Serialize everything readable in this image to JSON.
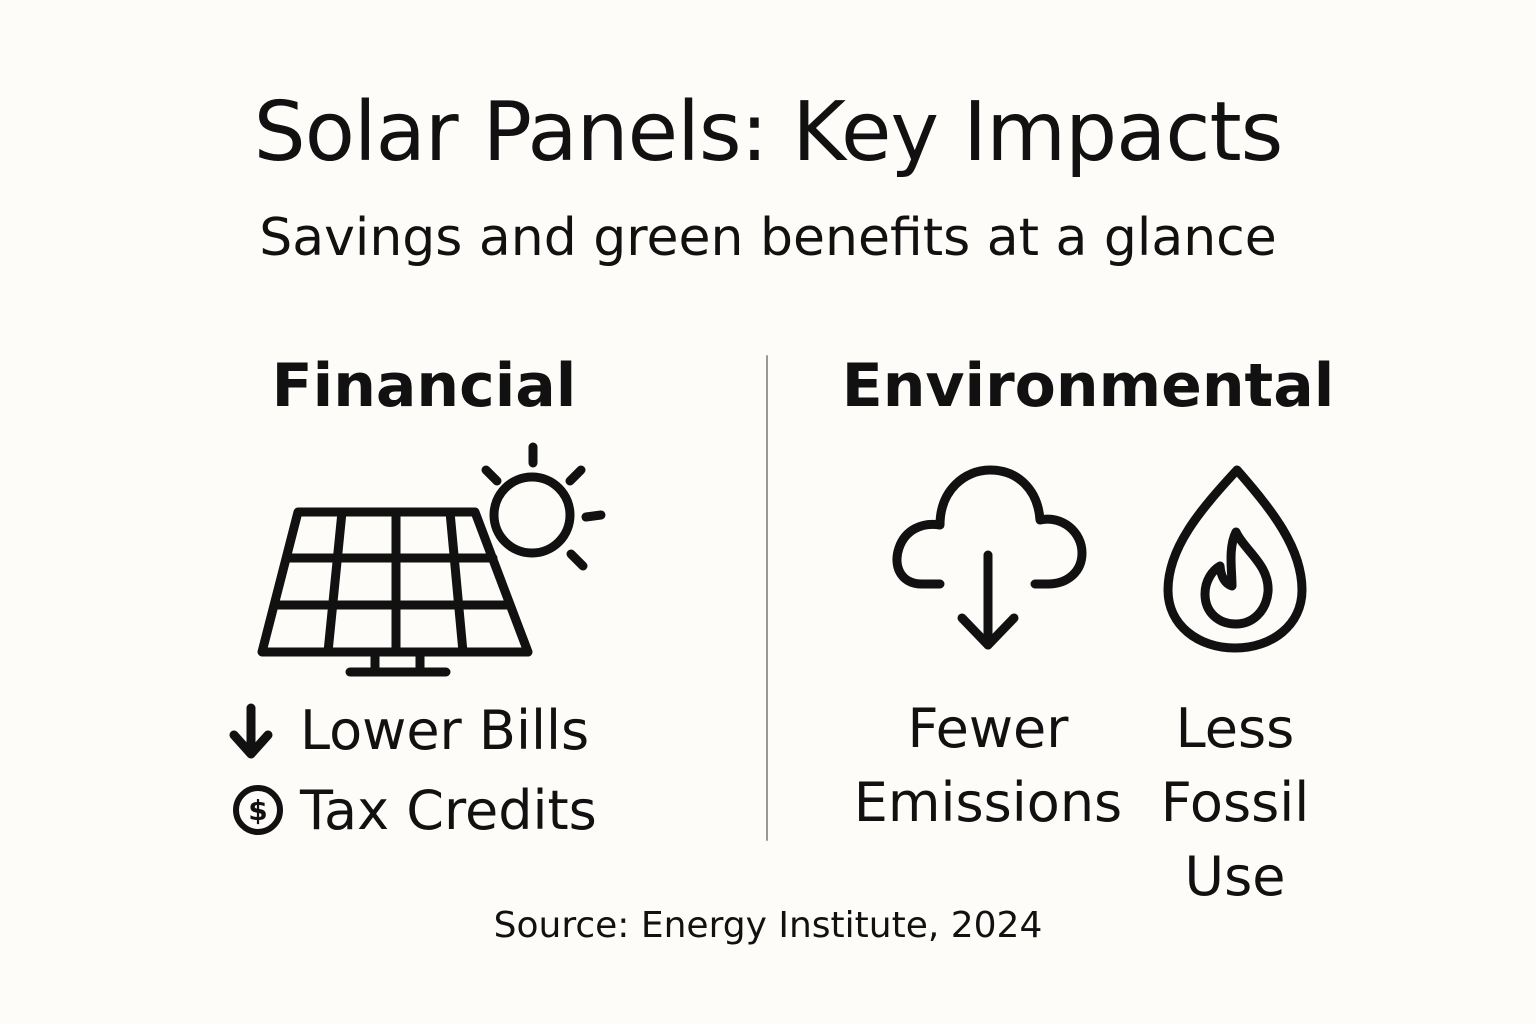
{
  "header": {
    "title": "Solar Panels: Key Impacts",
    "subtitle": "Savings and green benefits at a glance"
  },
  "financial": {
    "heading": "Financial",
    "items": [
      "Lower Bills",
      "Tax Credits"
    ]
  },
  "environmental": {
    "heading": "Environmental",
    "items": [
      "Fewer Emissions",
      "Less Fossil Use"
    ]
  },
  "footer": {
    "source": "Source: Energy Institute, 2024"
  }
}
